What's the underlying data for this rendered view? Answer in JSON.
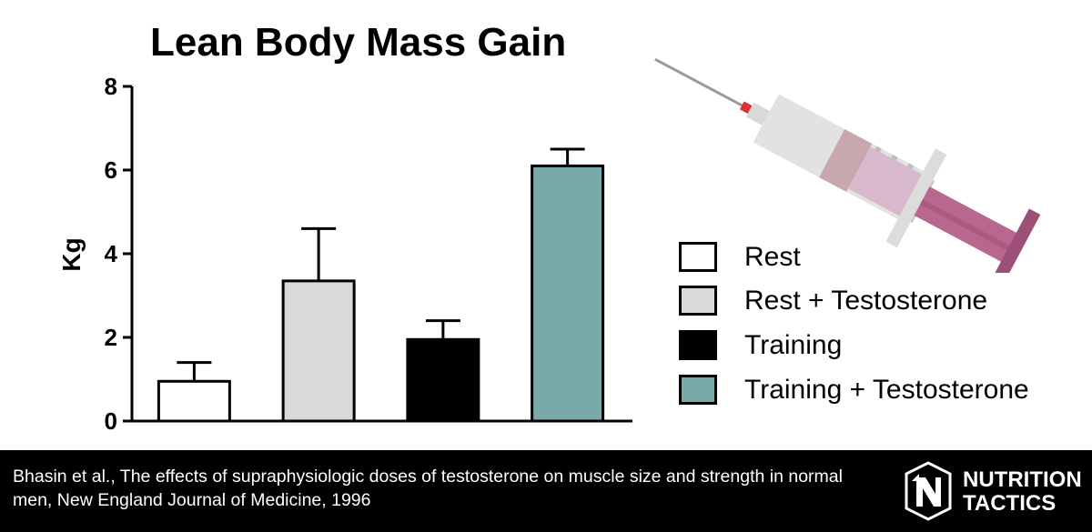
{
  "chart_data": {
    "type": "bar",
    "title": "Lean Body Mass Gain",
    "xlabel": "",
    "ylabel": "Kg",
    "ylim": [
      0,
      8
    ],
    "yticks": [
      0,
      2,
      4,
      6,
      8
    ],
    "grid": false,
    "legend_position": "right",
    "categories": [
      "Rest",
      "Rest + Testosterone",
      "Training",
      "Training + Testosterone"
    ],
    "values": [
      0.95,
      3.35,
      1.95,
      6.1
    ],
    "error_upper": [
      1.4,
      4.6,
      2.4,
      6.5
    ],
    "colors": [
      "#ffffff",
      "#d9d9d9",
      "#000000",
      "#7aa9a9"
    ]
  },
  "legend": {
    "items": [
      {
        "label": "Rest",
        "color": "#ffffff"
      },
      {
        "label": "Rest + Testosterone",
        "color": "#d9d9d9"
      },
      {
        "label": "Training",
        "color": "#000000"
      },
      {
        "label": "Training + Testosterone",
        "color": "#7aa9a9"
      }
    ]
  },
  "footer": {
    "citation": "Bhasin et al., The effects of supraphysiologic doses of testosterone on muscle size and strength in normal men, New England Journal of Medicine, 1996",
    "brand_line1": "NUTRITION",
    "brand_line2": "TACTICS",
    "logo_icon": "nutrition-tactics-logo-icon"
  },
  "decoration": {
    "syringe_icon": "syringe-icon"
  }
}
